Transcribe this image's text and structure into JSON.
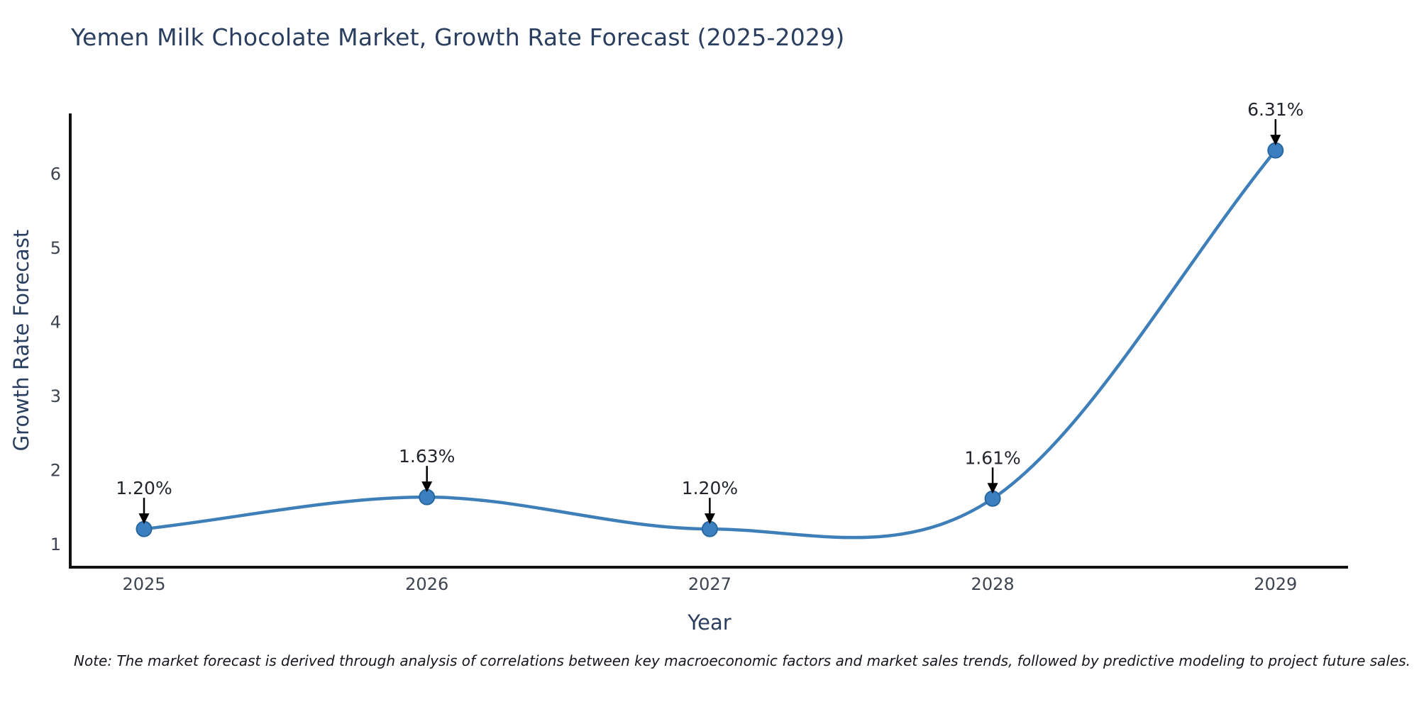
{
  "note": "Note: The market forecast is derived through analysis of correlations between key macroeconomic factors and market sales trends, followed by predictive modeling to project future sales.",
  "colors": {
    "line": "#3e7fba",
    "marker_fill": "#3b7fc0",
    "marker_edge": "#27679f",
    "axis": "#111111",
    "heading_text": "#2a3f5f",
    "tick_text": "#3d4450",
    "annotation_text": "#22262c",
    "arrow": "#000000",
    "note_text": "#15171c",
    "background": "#ffffff"
  },
  "chart_data": {
    "type": "line",
    "line_shape": "spline",
    "title": "Yemen Milk Chocolate Market, Growth Rate Forecast (2025-2029)",
    "categories": [
      "2025",
      "2026",
      "2027",
      "2028",
      "2029"
    ],
    "values": [
      1.2,
      1.63,
      1.2,
      1.61,
      6.31
    ],
    "point_labels": [
      "1.20%",
      "1.63%",
      "1.20%",
      "1.61%",
      "6.31%"
    ],
    "xlabel": "Year",
    "ylabel": "Growth Rate Forecast",
    "yticks": [
      1,
      2,
      3,
      4,
      5,
      6
    ],
    "ylim": [
      0.68,
      6.85
    ],
    "grid": false,
    "legend": false,
    "annotations_have_arrows": true
  }
}
